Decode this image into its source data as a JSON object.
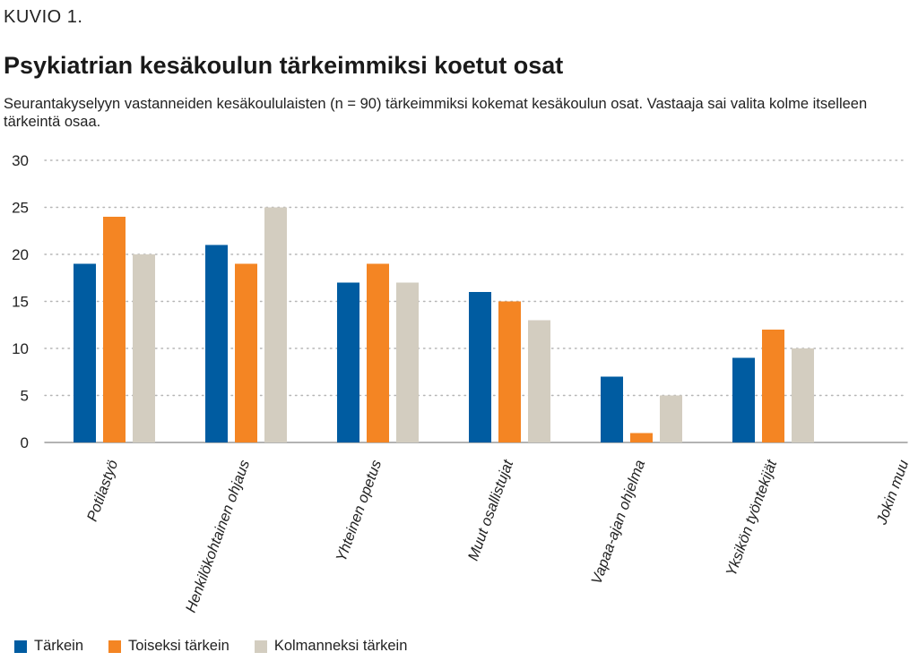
{
  "figure": {
    "kicker": "KUVIO 1.",
    "title": "Psykiatrian kesäkoulun tärkeimmiksi koetut osat",
    "subtitle": "Seurantakyselyyn vastanneiden kesäkoululaisten (n = 90) tärkeimmiksi kokemat kesäkoulun osat. Vastaaja sai valita kolme itselleen tärkeintä osaa."
  },
  "chart_data": {
    "type": "bar",
    "title": "Psykiatrian kesäkoulun tärkeimmiksi koetut osat",
    "xlabel": "",
    "ylabel": "",
    "ylim": [
      0,
      30
    ],
    "yticks": [
      0,
      5,
      10,
      15,
      20,
      25,
      30
    ],
    "grid": true,
    "legend_position": "bottom-left",
    "categories": [
      "Potilastyö",
      "Henkilökohtainen ohjaus",
      "Yhteinen opetus",
      "Muut osallistujat",
      "Vapaa-ajan ohjelma",
      "Yksikön työntekijät",
      "Jokin muu"
    ],
    "series": [
      {
        "name": "Tärkein",
        "color": "#005ca1",
        "values": [
          19,
          21,
          17,
          16,
          7,
          9,
          0
        ]
      },
      {
        "name": "Toiseksi tärkein",
        "color": "#f48523",
        "values": [
          24,
          19,
          19,
          15,
          1,
          12,
          0
        ]
      },
      {
        "name": "Kolmanneksi tärkein",
        "color": "#d3cdc0",
        "values": [
          20,
          25,
          17,
          13,
          5,
          10,
          1
        ]
      }
    ]
  }
}
